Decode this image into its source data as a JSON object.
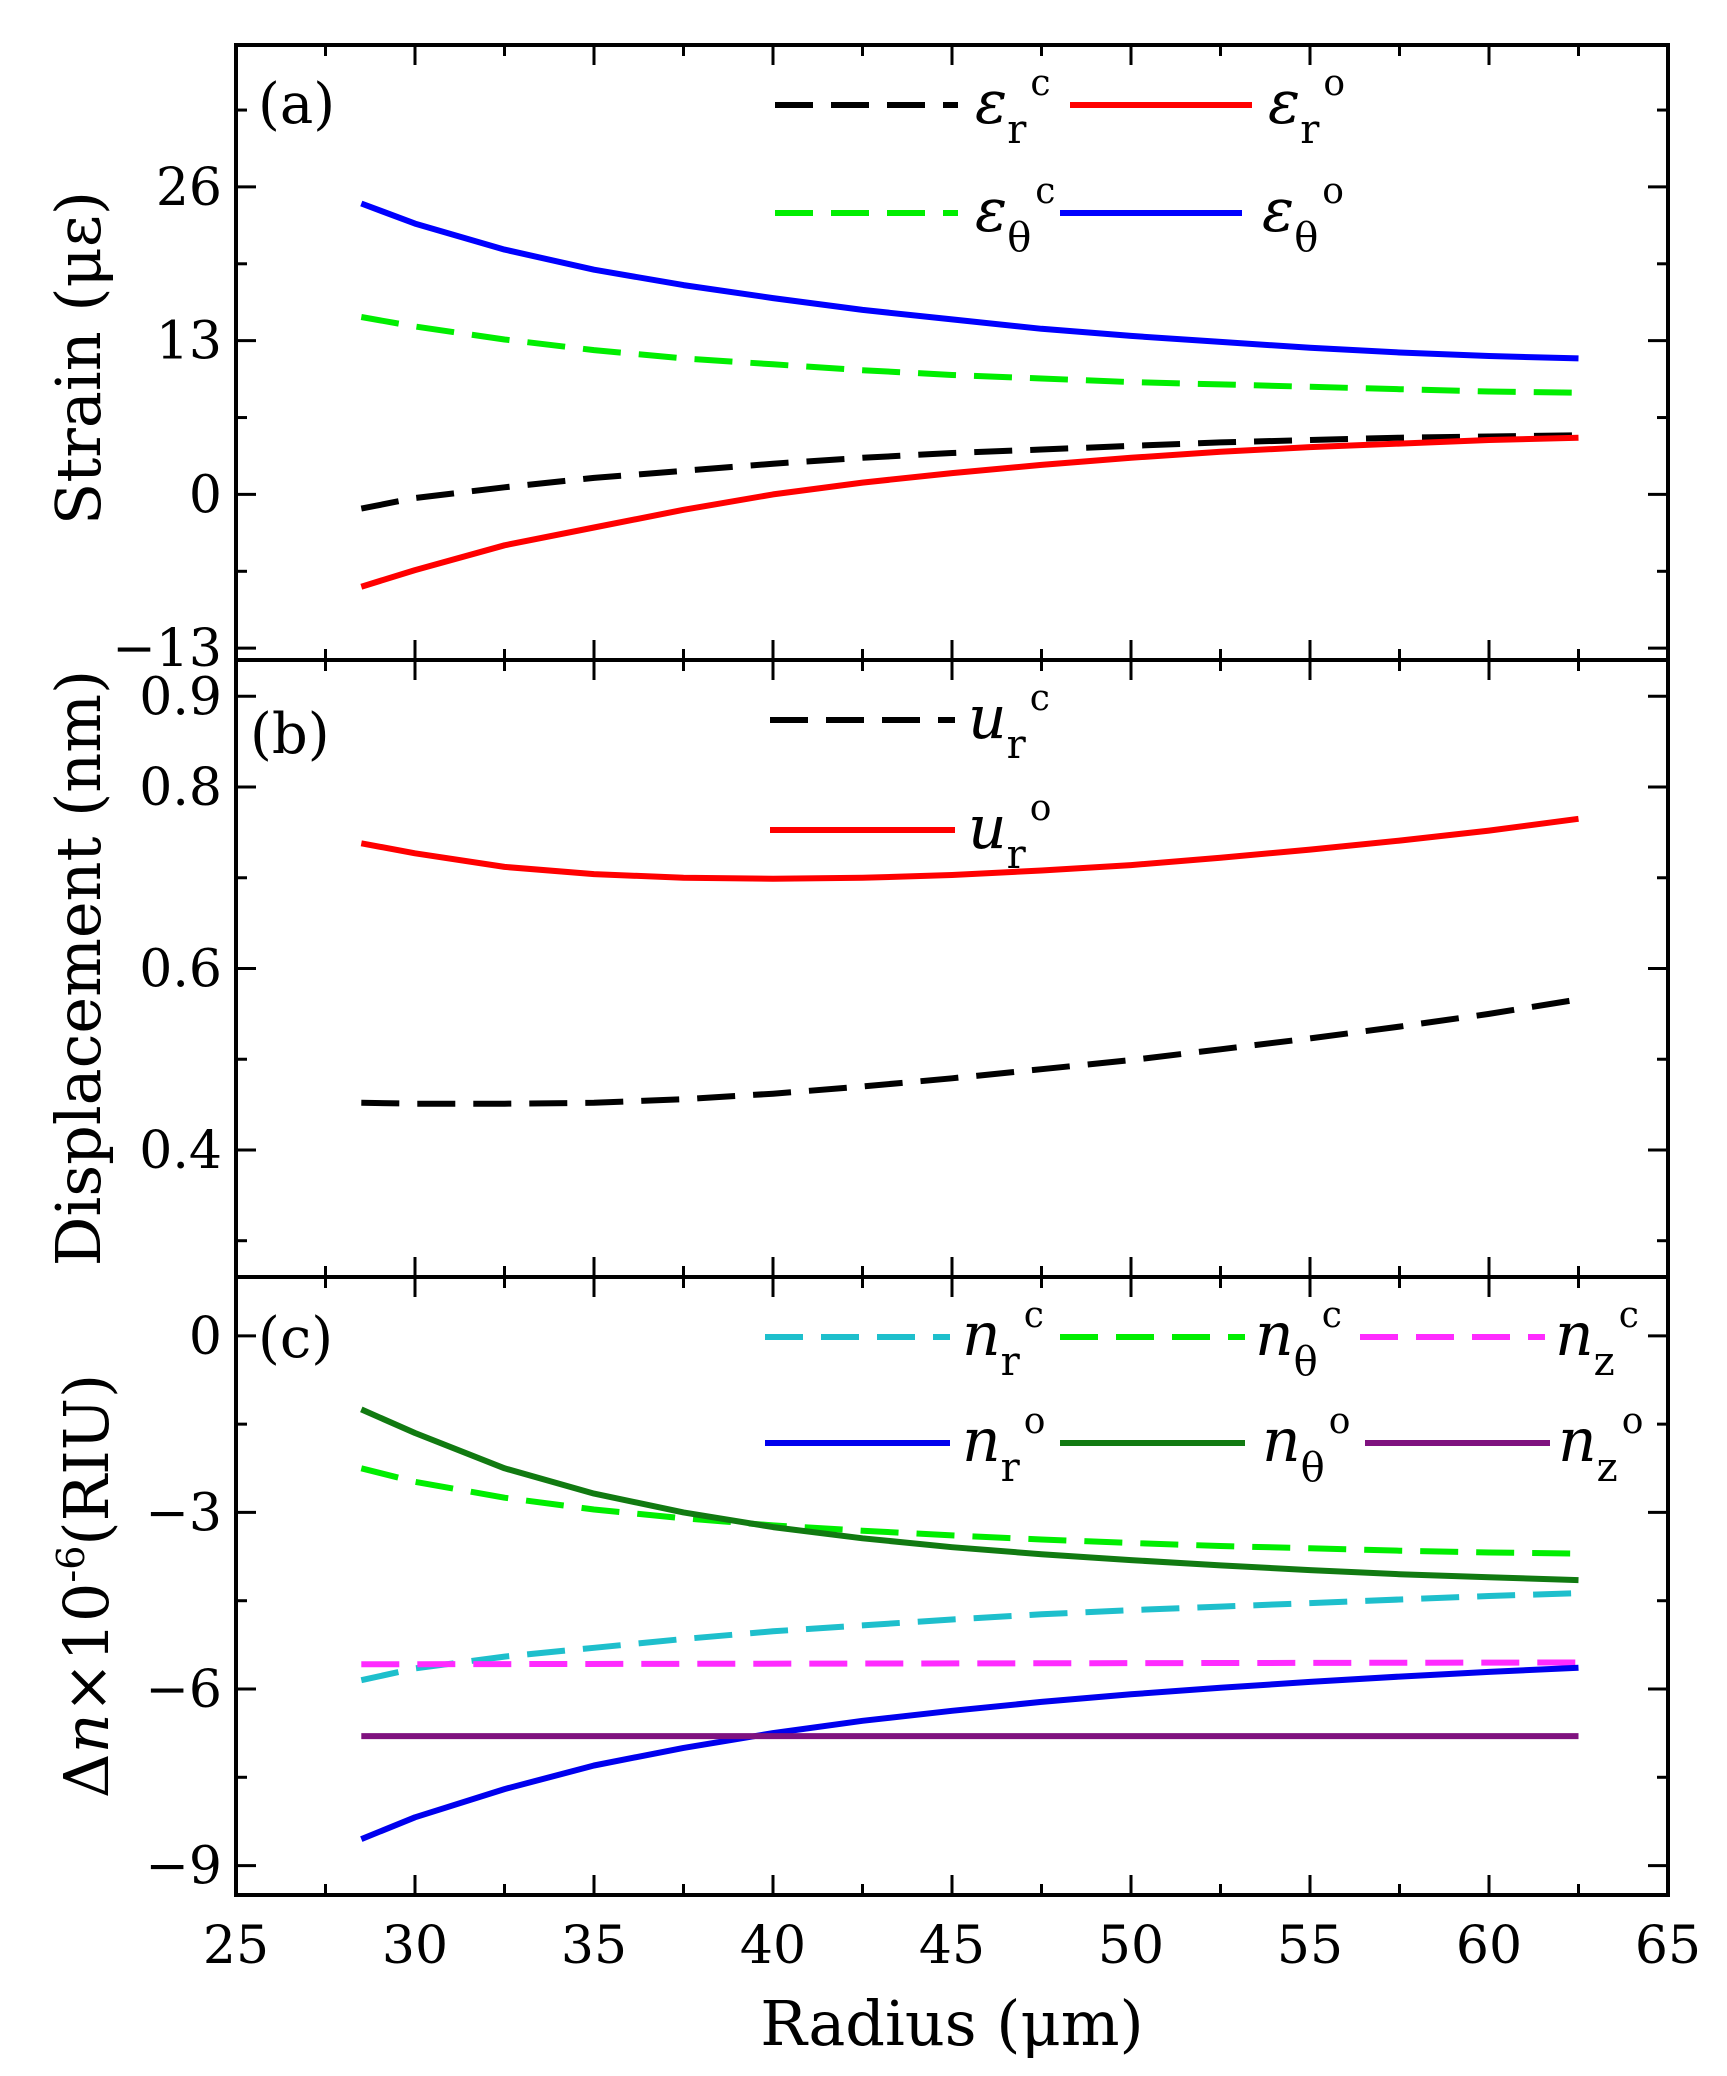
{
  "chart_data": [
    {
      "type": "line",
      "panel_label": "(a)",
      "ylabel": "Strain (με)",
      "xlim": [
        25,
        65
      ],
      "ylim": [
        -14,
        38
      ],
      "yticks": [
        "26",
        "13",
        "0",
        "-13"
      ],
      "ytick_values": [
        26,
        13,
        0,
        -13
      ],
      "legend": "top-right",
      "series": [
        {
          "name": "εrc",
          "symbol": "ε",
          "sub": "r",
          "sup": "c",
          "color": "#000000",
          "dash": true,
          "x": [
            28.5,
            30,
            32.5,
            35,
            37.5,
            40,
            42.5,
            45,
            47.5,
            50,
            52.5,
            55,
            57.5,
            60,
            62.5
          ],
          "y": [
            -1.2,
            -0.3,
            0.6,
            1.4,
            2.0,
            2.6,
            3.1,
            3.5,
            3.8,
            4.1,
            4.4,
            4.6,
            4.8,
            4.9,
            5.0
          ]
        },
        {
          "name": "εro",
          "symbol": "ε",
          "sub": "r",
          "sup": "o",
          "color": "#ff0000",
          "dash": false,
          "x": [
            28.5,
            30,
            32.5,
            35,
            37.5,
            40,
            42.5,
            45,
            47.5,
            50,
            52.5,
            55,
            57.5,
            60,
            62.5
          ],
          "y": [
            -7.8,
            -6.4,
            -4.3,
            -2.8,
            -1.3,
            0.0,
            1.0,
            1.8,
            2.5,
            3.1,
            3.6,
            4.0,
            4.3,
            4.6,
            4.8
          ]
        },
        {
          "name": "εθc",
          "symbol": "ε",
          "sub": "θ",
          "sup": "c",
          "color": "#00ee00",
          "dash": true,
          "x": [
            28.5,
            30,
            32.5,
            35,
            37.5,
            40,
            42.5,
            45,
            47.5,
            50,
            52.5,
            55,
            57.5,
            60,
            62.5
          ],
          "y": [
            15.0,
            14.2,
            13.1,
            12.2,
            11.5,
            11.0,
            10.5,
            10.1,
            9.8,
            9.5,
            9.3,
            9.1,
            8.9,
            8.7,
            8.6
          ]
        },
        {
          "name": "εθo",
          "symbol": "ε",
          "sub": "θ",
          "sup": "o",
          "color": "#0000ff",
          "dash": false,
          "x": [
            28.5,
            30,
            32.5,
            35,
            37.5,
            40,
            42.5,
            45,
            47.5,
            50,
            52.5,
            55,
            57.5,
            60,
            62.5
          ],
          "y": [
            24.6,
            22.9,
            20.7,
            19.0,
            17.7,
            16.6,
            15.6,
            14.8,
            14.0,
            13.4,
            12.9,
            12.4,
            12.0,
            11.7,
            11.5
          ]
        }
      ]
    },
    {
      "type": "line",
      "panel_label": "(b)",
      "ylabel": "Displacement (nm)",
      "xlim": [
        25,
        65
      ],
      "ylim": [
        0.26,
        0.94
      ],
      "yticks": [
        "0.9",
        "0.8",
        "0.6",
        "0.4"
      ],
      "ytick_values": [
        0.9,
        0.8,
        0.6,
        0.4
      ],
      "minor_yticks": [
        0.3,
        0.5,
        0.7
      ],
      "legend": "top-center",
      "series": [
        {
          "name": "urc",
          "symbol": "u",
          "sub": "r",
          "sup": "c",
          "color": "#000000",
          "dash": true,
          "x": [
            28.5,
            30,
            32.5,
            35,
            37.5,
            40,
            42.5,
            45,
            47.5,
            50,
            52.5,
            55,
            57.5,
            60,
            62.5
          ],
          "y": [
            0.452,
            0.451,
            0.451,
            0.452,
            0.456,
            0.462,
            0.47,
            0.479,
            0.489,
            0.499,
            0.511,
            0.523,
            0.536,
            0.55,
            0.566
          ]
        },
        {
          "name": "uro",
          "symbol": "u",
          "sub": "r",
          "sup": "o",
          "color": "#ff0000",
          "dash": false,
          "x": [
            28.5,
            30,
            32.5,
            35,
            37.5,
            40,
            42.5,
            45,
            47.5,
            50,
            52.5,
            55,
            57.5,
            60,
            62.5
          ],
          "y": [
            0.738,
            0.727,
            0.712,
            0.704,
            0.7,
            0.699,
            0.7,
            0.703,
            0.708,
            0.714,
            0.722,
            0.731,
            0.741,
            0.752,
            0.765
          ]
        }
      ]
    },
    {
      "type": "line",
      "panel_label": "(c)",
      "ylabel": "Δn×10⁻⁶(RIU)",
      "ylabel_parts": {
        "delta": "Δ",
        "n": "n",
        "times": "×10",
        "exp": "-6",
        "unit": "(RIU)"
      },
      "xlabel": "Radius (μm)",
      "xlim": [
        25,
        65
      ],
      "ylim": [
        -9.5,
        1.0
      ],
      "xticks": [
        "25",
        "30",
        "35",
        "40",
        "45",
        "50",
        "55",
        "60",
        "65"
      ],
      "xtick_values": [
        25,
        30,
        35,
        40,
        45,
        50,
        55,
        60,
        65
      ],
      "yticks": [
        "0",
        "-3",
        "-6",
        "-9"
      ],
      "ytick_values": [
        0,
        -3,
        -6,
        -9
      ],
      "legend": "top-right",
      "series": [
        {
          "name": "nrc",
          "symbol": "n",
          "sub": "r",
          "sup": "c",
          "color": "#1ebfcc",
          "dash": true,
          "x": [
            28.5,
            30,
            32.5,
            35,
            37.5,
            40,
            42.5,
            45,
            47.5,
            50,
            52.5,
            55,
            57.5,
            60,
            62.5
          ],
          "y": [
            -5.85,
            -5.65,
            -5.45,
            -5.3,
            -5.15,
            -5.02,
            -4.92,
            -4.82,
            -4.73,
            -4.66,
            -4.6,
            -4.54,
            -4.48,
            -4.42,
            -4.37
          ]
        },
        {
          "name": "nθc",
          "symbol": "n",
          "sub": "θ",
          "sup": "c",
          "color": "#00ee00",
          "dash": true,
          "x": [
            28.5,
            30,
            32.5,
            35,
            37.5,
            40,
            42.5,
            45,
            47.5,
            50,
            52.5,
            55,
            57.5,
            60,
            62.5
          ],
          "y": [
            -2.25,
            -2.48,
            -2.75,
            -2.95,
            -3.1,
            -3.22,
            -3.31,
            -3.39,
            -3.46,
            -3.52,
            -3.57,
            -3.61,
            -3.65,
            -3.68,
            -3.7
          ]
        },
        {
          "name": "nzc",
          "symbol": "n",
          "sub": "z",
          "sup": "c",
          "color": "#ff2bff",
          "dash": true,
          "x": [
            28.5,
            62.5
          ],
          "y": [
            -5.58,
            -5.55
          ]
        },
        {
          "name": "nro",
          "symbol": "n",
          "sub": "r",
          "sup": "o",
          "color": "#0000ee",
          "dash": false,
          "x": [
            28.5,
            30,
            32.5,
            35,
            37.5,
            40,
            42.5,
            45,
            47.5,
            50,
            52.5,
            55,
            57.5,
            60,
            62.5
          ],
          "y": [
            -8.55,
            -8.18,
            -7.7,
            -7.3,
            -7.0,
            -6.75,
            -6.54,
            -6.37,
            -6.22,
            -6.09,
            -5.98,
            -5.88,
            -5.79,
            -5.71,
            -5.64
          ]
        },
        {
          "name": "nθo",
          "symbol": "n",
          "sub": "θ",
          "sup": "o",
          "color": "#117a11",
          "dash": false,
          "x": [
            28.5,
            30,
            32.5,
            35,
            37.5,
            40,
            42.5,
            45,
            47.5,
            50,
            52.5,
            55,
            57.5,
            60,
            62.5
          ],
          "y": [
            -1.25,
            -1.65,
            -2.25,
            -2.68,
            -3.0,
            -3.25,
            -3.44,
            -3.59,
            -3.71,
            -3.81,
            -3.9,
            -3.98,
            -4.05,
            -4.1,
            -4.15
          ]
        },
        {
          "name": "nzo",
          "symbol": "n",
          "sub": "z",
          "sup": "o",
          "color": "#7f127f",
          "dash": false,
          "x": [
            28.5,
            62.5
          ],
          "y": [
            -6.8,
            -6.8
          ]
        }
      ]
    }
  ]
}
